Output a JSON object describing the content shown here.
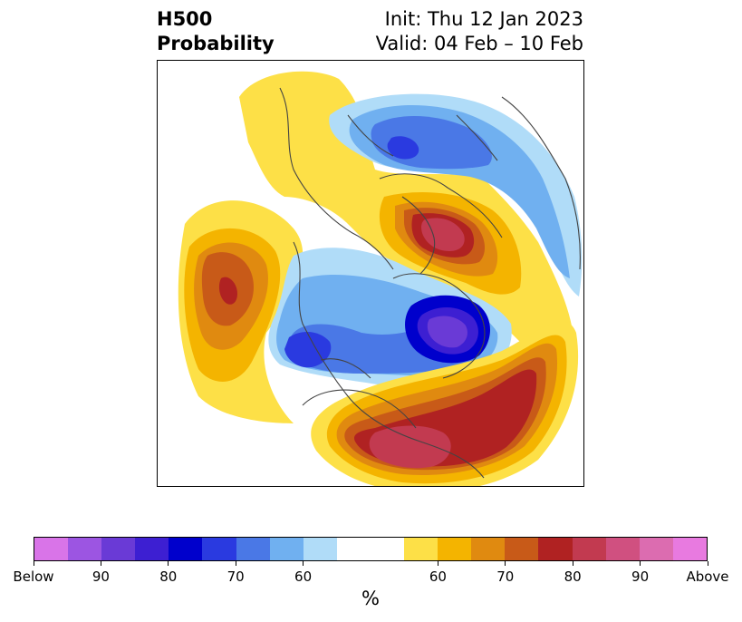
{
  "title": {
    "line1": "H500",
    "line2": "Probability",
    "init": "Init: Thu 12 Jan 2023",
    "valid": "Valid: 04 Feb – 10 Feb"
  },
  "colorbar": {
    "colors": [
      "#d974e8",
      "#9c55e2",
      "#6a3ad6",
      "#3d1fd2",
      "#0000cc",
      "#2a3ae0",
      "#4a78e6",
      "#70b0f0",
      "#b0dcf8",
      "#ffffff",
      "#fde047",
      "#f4b400",
      "#e08a10",
      "#c85a18",
      "#b02222",
      "#c23a50",
      "#d05080",
      "#dc6cb0",
      "#e87ae0"
    ],
    "tick_labels": [
      "Below",
      "90",
      "80",
      "70",
      "60",
      "60",
      "70",
      "80",
      "90",
      "Above"
    ],
    "unit": "%"
  },
  "map": {
    "legend_scheme": "below-normal blue/purple, above-normal yellow/red/pink"
  }
}
